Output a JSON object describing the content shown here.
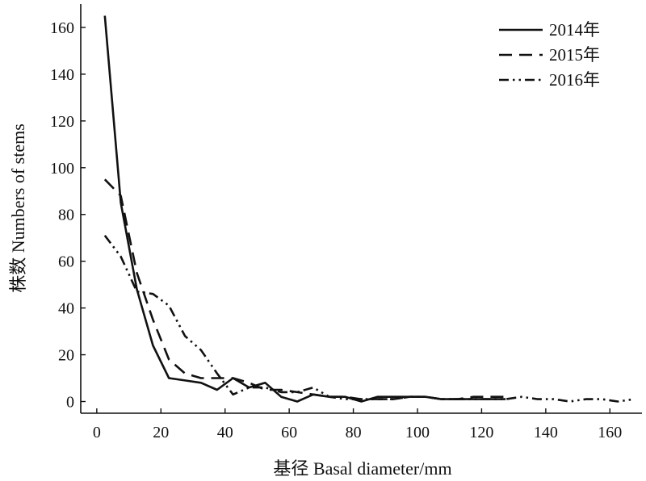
{
  "chart_data": {
    "type": "line",
    "xlabel": "基径 Basal diameter/mm",
    "ylabel": "株数 Numbers of stems",
    "xlim": [
      -5,
      170
    ],
    "ylim": [
      -5,
      170
    ],
    "xticks": [
      0,
      20,
      40,
      60,
      80,
      100,
      120,
      140,
      160
    ],
    "yticks": [
      0,
      20,
      40,
      60,
      80,
      100,
      120,
      140,
      160
    ],
    "grid": false,
    "legend_position": "top-right",
    "series": [
      {
        "name": "2014年",
        "line_style": "solid",
        "x": [
          2.5,
          7.5,
          12.5,
          17.5,
          22.5,
          27.5,
          32.5,
          37.5,
          42.5,
          47.5,
          52.5,
          57.5,
          62.5,
          67.5,
          72.5,
          77.5,
          82.5,
          87.5,
          92.5,
          97.5,
          102.5,
          107.5,
          112.5,
          117.5,
          122.5,
          127.5
        ],
        "y": [
          165,
          85,
          48,
          24,
          10,
          9,
          8,
          5,
          10,
          6,
          8,
          2,
          0,
          3,
          2,
          2,
          0,
          2,
          2,
          2,
          2,
          1,
          1,
          1,
          1,
          1
        ]
      },
      {
        "name": "2015年",
        "line_style": "dashed",
        "x": [
          2.5,
          7.5,
          12.5,
          17.5,
          22.5,
          27.5,
          32.5,
          37.5,
          42.5,
          47.5,
          52.5,
          57.5,
          62.5,
          67.5,
          72.5,
          77.5,
          82.5,
          87.5,
          92.5,
          97.5,
          102.5,
          107.5,
          112.5,
          117.5,
          122.5,
          127.5
        ],
        "y": [
          95,
          88,
          55,
          35,
          18,
          12,
          10,
          10,
          10,
          8,
          5,
          5,
          4,
          3,
          2,
          2,
          1,
          1,
          1,
          2,
          2,
          1,
          1,
          2,
          2,
          2
        ]
      },
      {
        "name": "2016年",
        "line_style": "dash-dot-dot",
        "x": [
          2.5,
          7.5,
          12.5,
          17.5,
          22.5,
          27.5,
          32.5,
          37.5,
          42.5,
          47.5,
          52.5,
          57.5,
          62.5,
          67.5,
          72.5,
          77.5,
          82.5,
          87.5,
          92.5,
          97.5,
          102.5,
          107.5,
          112.5,
          117.5,
          122.5,
          127.5,
          132.5,
          137.5,
          142.5,
          147.5,
          152.5,
          157.5,
          162.5,
          167.5
        ],
        "y": [
          71,
          62,
          47,
          46,
          41,
          28,
          22,
          12,
          3,
          6,
          6,
          4,
          4,
          6,
          2,
          1,
          1,
          1,
          1,
          2,
          2,
          1,
          1,
          1,
          1,
          1,
          2,
          1,
          1,
          0,
          1,
          1,
          0,
          1
        ]
      }
    ]
  }
}
